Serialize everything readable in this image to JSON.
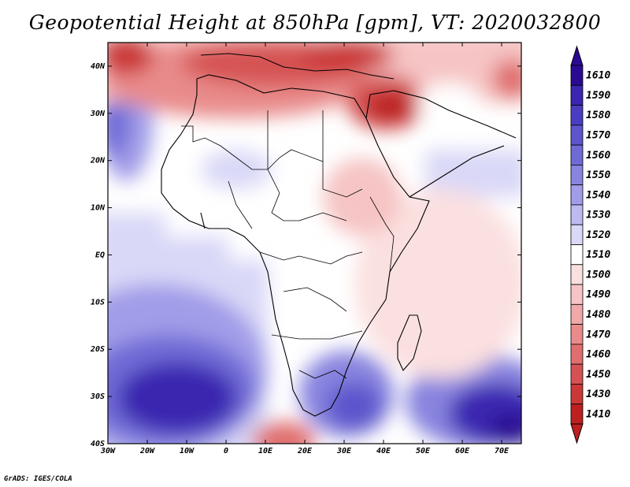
{
  "title": "Geopotential Height at 850hPa [gpm], VT: 2020032800",
  "credit": "GrADS: IGES/COLA",
  "map": {
    "projection": "lat-lon",
    "lon_range": [
      -30,
      75
    ],
    "lat_range": [
      -40,
      45
    ],
    "x_ticks": [
      "30W",
      "20W",
      "10W",
      "0",
      "10E",
      "20E",
      "30E",
      "40E",
      "50E",
      "60E",
      "70E"
    ],
    "x_tick_values": [
      -30,
      -20,
      -10,
      0,
      10,
      20,
      30,
      40,
      50,
      60,
      70
    ],
    "y_ticks": [
      "40N",
      "30N",
      "20N",
      "10N",
      "EQ",
      "10S",
      "20S",
      "30S",
      "40S"
    ],
    "y_tick_values": [
      40,
      30,
      20,
      10,
      0,
      -10,
      -20,
      -30,
      -40
    ]
  },
  "colorbar": {
    "labels": [
      "1610",
      "1590",
      "1580",
      "1570",
      "1560",
      "1550",
      "1540",
      "1530",
      "1520",
      "1510",
      "1500",
      "1490",
      "1480",
      "1470",
      "1460",
      "1450",
      "1430",
      "1410"
    ],
    "colors": [
      "#2a0a92",
      "#3a26b0",
      "#4b3dc1",
      "#5c55cc",
      "#6f6bd6",
      "#8884df",
      "#a19de8",
      "#bcbaf0",
      "#d9d8f7",
      "#ffffff",
      "#fbe0e0",
      "#f6c4c4",
      "#f0a8a8",
      "#e98b8b",
      "#e06e6e",
      "#d65252",
      "#cb3838",
      "#bc2020"
    ]
  }
}
